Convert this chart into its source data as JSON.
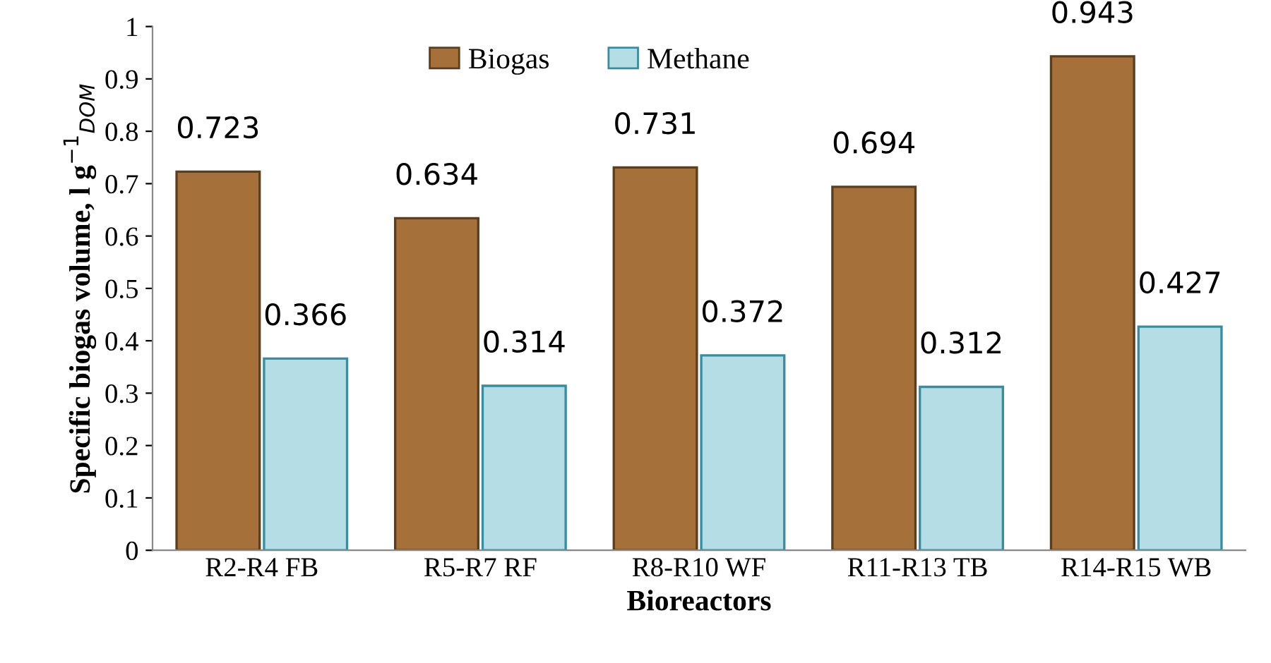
{
  "chart_data": {
    "type": "bar",
    "xlabel": "Bioreactors",
    "ylabel": "Specific biogas volume, l g$^{−1}$$_{DOM}$",
    "categories": [
      "R2-R4 FB",
      "R5-R7 RF",
      "R8-R10 WF",
      "R11-R13 TB",
      "R14-R15 WB"
    ],
    "series": [
      {
        "name": "Biogas",
        "color": "#a5703a",
        "values": [
          0.723,
          0.634,
          0.731,
          0.694,
          0.943
        ]
      },
      {
        "name": "Methane",
        "color": "#b4dde6",
        "values": [
          0.366,
          0.314,
          0.372,
          0.312,
          0.427
        ]
      }
    ],
    "ylim": [
      0,
      1
    ],
    "yticks": [
      0,
      0.1,
      0.2,
      0.3,
      0.4,
      0.5,
      0.6,
      0.7,
      0.8,
      0.9,
      1
    ],
    "data_labels": true,
    "legend": "top",
    "grid": false
  }
}
